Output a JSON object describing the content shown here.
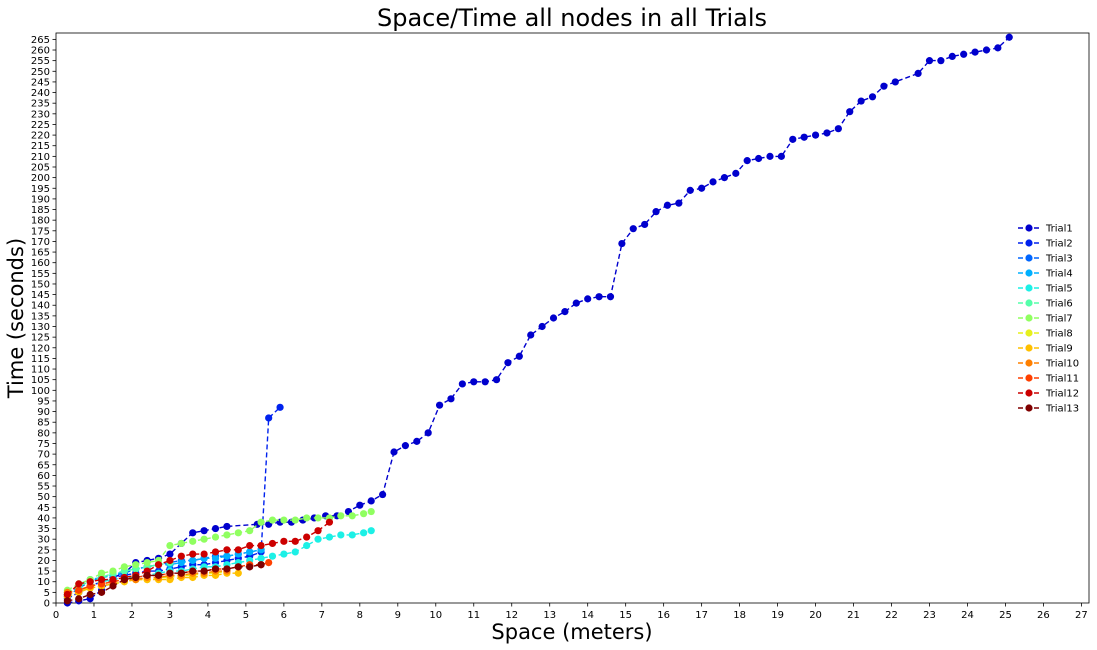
{
  "chart_data": {
    "type": "line",
    "title": "Space/Time all nodes in all Trials",
    "xlabel": "Space (meters)",
    "ylabel": "Time (seconds)",
    "xlim": [
      0,
      27.2
    ],
    "ylim": [
      0,
      268
    ],
    "x_ticks": [
      "0",
      "1",
      "2",
      "3",
      "4",
      "5",
      "6",
      "7",
      "8",
      "9",
      "10",
      "11",
      "12",
      "13",
      "14",
      "15",
      "16",
      "17",
      "18",
      "19",
      "20",
      "21",
      "22",
      "23",
      "24",
      "25",
      "26",
      "27"
    ],
    "y_ticks": [
      "0",
      "5",
      "10",
      "15",
      "20",
      "25",
      "30",
      "35",
      "40",
      "45",
      "50",
      "55",
      "60",
      "65",
      "70",
      "75",
      "80",
      "85",
      "90",
      "95",
      "100",
      "105",
      "110",
      "115",
      "120",
      "125",
      "130",
      "135",
      "140",
      "145",
      "150",
      "155",
      "160",
      "165",
      "170",
      "175",
      "180",
      "185",
      "190",
      "195",
      "200",
      "205",
      "210",
      "215",
      "220",
      "225",
      "230",
      "235",
      "240",
      "245",
      "250",
      "255",
      "260",
      "265"
    ],
    "grid": false,
    "legend_position": "right",
    "series": [
      {
        "name": "Trial1",
        "color": "#0000cd",
        "x": [
          0.3,
          0.6,
          0.9,
          1.2,
          1.5,
          1.8,
          2.1,
          2.4,
          2.7,
          3.0,
          3.3,
          3.6,
          3.9,
          4.2,
          4.5,
          5.3,
          5.6,
          5.9,
          6.2,
          6.5,
          6.8,
          7.1,
          7.4,
          7.7,
          8.0,
          8.3,
          8.6,
          8.9,
          9.2,
          9.5,
          9.8,
          10.1,
          10.4,
          10.7,
          11.0,
          11.3,
          11.6,
          11.9,
          12.2,
          12.5,
          12.8,
          13.1,
          13.4,
          13.7,
          14.0,
          14.3,
          14.6,
          14.9,
          15.2,
          15.5,
          15.8,
          16.1,
          16.4,
          16.7,
          17.0,
          17.3,
          17.6,
          17.9,
          18.2,
          18.5,
          18.8,
          19.1,
          19.4,
          19.7,
          20.0,
          20.3,
          20.6,
          20.9,
          21.2,
          21.5,
          21.8,
          22.1,
          22.7,
          23.0,
          23.3,
          23.6,
          23.9,
          24.2,
          24.5,
          24.8,
          25.1
        ],
        "y": [
          0,
          1,
          2,
          6,
          12,
          14,
          19,
          20,
          21,
          23,
          28,
          33,
          34,
          35,
          36,
          37,
          37,
          38,
          38,
          39,
          40,
          41,
          41,
          43,
          46,
          48,
          51,
          71,
          74,
          76,
          80,
          93,
          96,
          103,
          104,
          104,
          105,
          113,
          116,
          126,
          130,
          134,
          137,
          141,
          143,
          144,
          144,
          169,
          176,
          178,
          184,
          187,
          188,
          194,
          195,
          198,
          200,
          202,
          208,
          209,
          210,
          210,
          218,
          219,
          220,
          221,
          223,
          231,
          236,
          238,
          243,
          245,
          249,
          255,
          255,
          257,
          258,
          259,
          260,
          261,
          266
        ]
      },
      {
        "name": "Trial2",
        "color": "#0022ee",
        "x": [
          0.3,
          0.6,
          0.9,
          1.2,
          1.5,
          1.8,
          2.1,
          2.4,
          2.7,
          3.0,
          3.3,
          3.6,
          3.9,
          4.2,
          4.5,
          4.8,
          5.1,
          5.4,
          5.6,
          5.9
        ],
        "y": [
          2,
          5,
          8,
          10,
          12,
          13,
          14,
          15,
          15,
          16,
          17,
          18,
          18,
          19,
          20,
          21,
          22,
          24,
          87,
          92
        ]
      },
      {
        "name": "Trial3",
        "color": "#0066ff",
        "x": [
          0.3,
          0.6,
          0.9,
          1.2,
          1.5,
          1.8,
          2.1,
          2.4,
          2.7,
          3.0,
          3.3,
          3.6,
          3.9,
          4.2,
          4.5,
          4.8,
          5.1,
          5.4
        ],
        "y": [
          3,
          7,
          10,
          12,
          13,
          14,
          16,
          17,
          18,
          19,
          20,
          20,
          21,
          22,
          22,
          23,
          24,
          25
        ]
      },
      {
        "name": "Trial4",
        "color": "#00b0ff",
        "x": [
          0.3,
          0.6,
          0.9,
          1.2,
          1.5,
          1.8,
          2.1,
          2.4,
          2.7,
          3.0,
          3.3,
          3.6,
          3.9,
          4.2,
          4.5,
          4.8,
          5.1,
          5.4
        ],
        "y": [
          4,
          8,
          11,
          12,
          13,
          15,
          16,
          17,
          18,
          18,
          19,
          20,
          21,
          21,
          22,
          23,
          24,
          25
        ]
      },
      {
        "name": "Trial5",
        "color": "#1cf0e6",
        "x": [
          0.3,
          0.6,
          0.9,
          1.2,
          1.5,
          1.8,
          2.1,
          2.4,
          2.7,
          3.0,
          3.3,
          3.6,
          3.9,
          4.2,
          4.5,
          4.8,
          5.1,
          5.4,
          5.7,
          6.0,
          6.3,
          6.6,
          6.9,
          7.2,
          7.5,
          7.8,
          8.1,
          8.3
        ],
        "y": [
          4,
          6,
          8,
          10,
          11,
          12,
          12,
          13,
          14,
          15,
          15,
          16,
          17,
          17,
          18,
          19,
          20,
          21,
          22,
          23,
          24,
          27,
          30,
          31,
          32,
          32,
          33,
          34
        ]
      },
      {
        "name": "Trial6",
        "color": "#55ffaa",
        "x": [
          0.3,
          0.6,
          0.9,
          1.2,
          1.5,
          1.8,
          2.1,
          2.4,
          2.7,
          3.0
        ],
        "y": [
          5,
          8,
          10,
          12,
          14,
          15,
          16,
          17,
          18,
          19
        ]
      },
      {
        "name": "Trial7",
        "color": "#90ff60",
        "x": [
          0.3,
          0.6,
          0.9,
          1.2,
          1.5,
          1.8,
          2.1,
          2.4,
          2.7,
          3.0,
          3.3,
          3.6,
          3.9,
          4.2,
          4.5,
          4.8,
          5.1,
          5.4,
          5.7,
          6.0,
          6.3,
          6.6,
          6.9,
          7.2,
          7.5,
          7.8,
          8.1,
          8.3
        ],
        "y": [
          6,
          9,
          11,
          14,
          15,
          17,
          18,
          19,
          20,
          27,
          28,
          29,
          30,
          31,
          32,
          33,
          34,
          38,
          39,
          39,
          39,
          40,
          40,
          40,
          41,
          41,
          42,
          43
        ]
      },
      {
        "name": "Trial8",
        "color": "#e6f01c",
        "x": [
          0.3,
          0.6,
          0.9,
          1.2,
          1.5,
          1.8,
          2.1,
          2.4,
          2.7,
          3.0,
          3.3,
          3.6,
          3.9,
          4.2,
          4.5
        ],
        "y": [
          4,
          6,
          7,
          8,
          9,
          10,
          11,
          11,
          12,
          12,
          13,
          13,
          14,
          14,
          15
        ]
      },
      {
        "name": "Trial9",
        "color": "#ffc000",
        "x": [
          0.3,
          0.6,
          0.9,
          1.2,
          1.5,
          1.8,
          2.1,
          2.4,
          2.7,
          3.0,
          3.3,
          3.6,
          3.9,
          4.2,
          4.5,
          4.8
        ],
        "y": [
          3,
          5,
          7,
          8,
          9,
          10,
          11,
          11,
          11,
          11,
          12,
          12,
          13,
          13,
          14,
          14
        ]
      },
      {
        "name": "Trial10",
        "color": "#ff8000",
        "x": [
          0.3,
          0.6,
          0.9,
          1.2,
          1.5,
          1.8,
          2.1,
          2.4,
          2.7,
          3.0,
          3.3,
          3.6,
          3.9,
          4.2,
          4.5
        ],
        "y": [
          5,
          6,
          8,
          9,
          10,
          11,
          11,
          12,
          12,
          13,
          13,
          14,
          14,
          15,
          15
        ]
      },
      {
        "name": "Trial11",
        "color": "#ff4000",
        "x": [
          0.3,
          0.6,
          0.9,
          1.2,
          1.5,
          1.8,
          2.1,
          2.4,
          2.7,
          3.0,
          3.3,
          3.6,
          3.9,
          4.2,
          4.5,
          4.8,
          5.1,
          5.4,
          5.6
        ],
        "y": [
          4,
          6,
          8,
          9,
          10,
          11,
          12,
          13,
          13,
          14,
          14,
          15,
          15,
          16,
          16,
          17,
          18,
          18,
          19
        ]
      },
      {
        "name": "Trial12",
        "color": "#cc0000",
        "x": [
          0.3,
          0.6,
          0.9,
          1.2,
          1.5,
          1.8,
          2.1,
          2.4,
          2.7,
          3.0,
          3.3,
          3.6,
          3.9,
          4.2,
          4.5,
          4.8,
          5.1,
          5.4,
          5.7,
          6.0,
          6.3,
          6.6,
          6.9,
          7.2
        ],
        "y": [
          4,
          9,
          10,
          11,
          11,
          12,
          13,
          15,
          18,
          20,
          22,
          23,
          23,
          24,
          25,
          25,
          27,
          27,
          28,
          29,
          29,
          31,
          34,
          38
        ]
      },
      {
        "name": "Trial13",
        "color": "#800000",
        "x": [
          0.3,
          0.6,
          0.9,
          1.2,
          1.5,
          1.8,
          2.1,
          2.4,
          2.7,
          3.0,
          3.3,
          3.6,
          3.9,
          4.2,
          4.5,
          4.8,
          5.1,
          5.4
        ],
        "y": [
          1,
          2,
          4,
          5,
          8,
          11,
          12,
          13,
          13,
          14,
          14,
          15,
          15,
          16,
          16,
          17,
          17,
          18
        ]
      }
    ]
  }
}
